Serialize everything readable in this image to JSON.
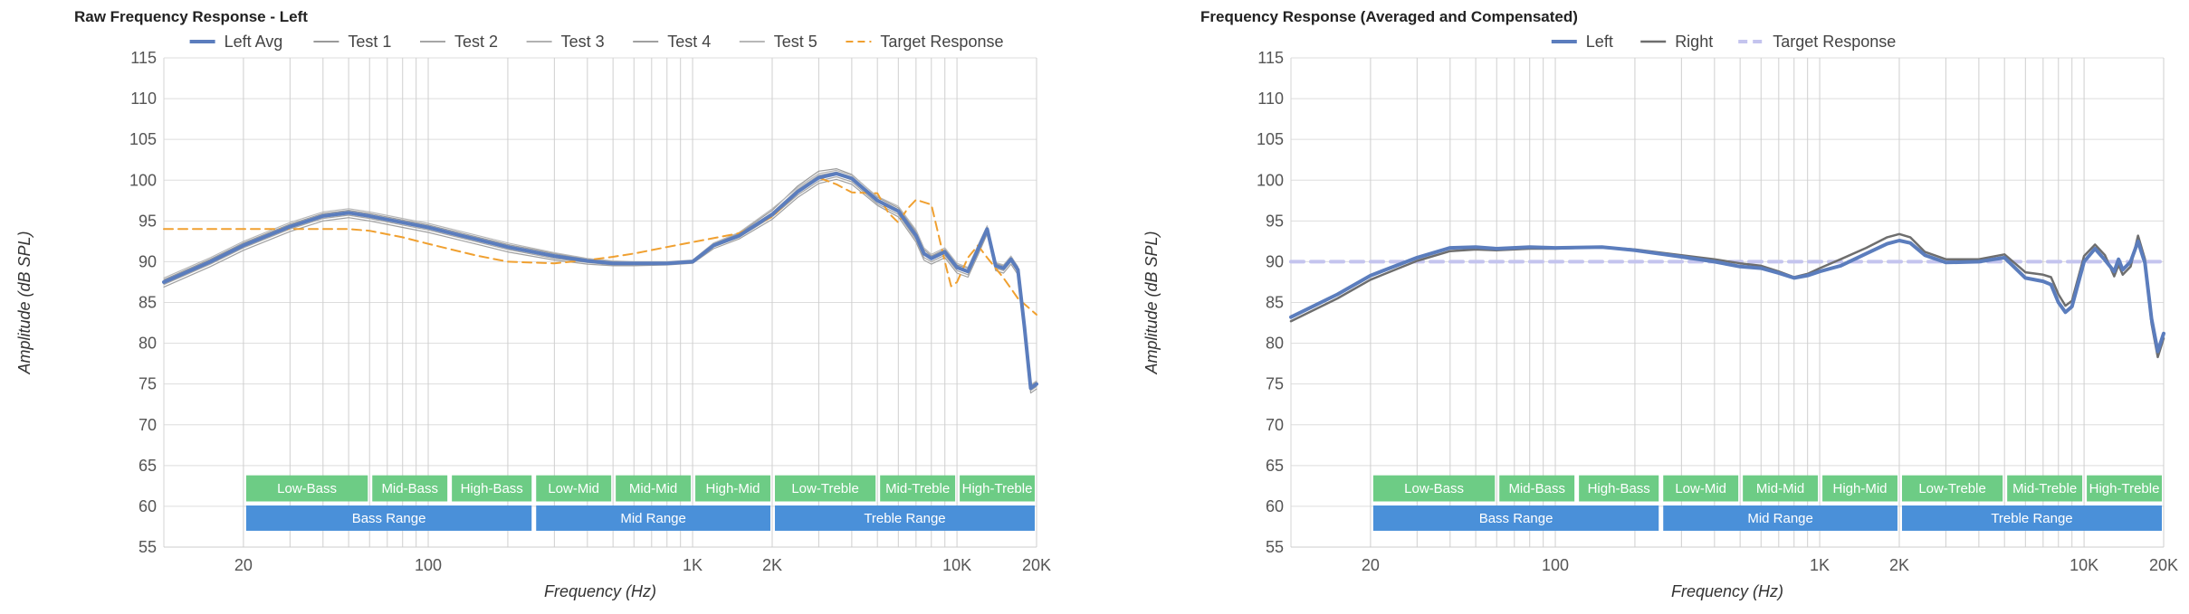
{
  "chart_data": [
    {
      "type": "line",
      "title": "Raw Frequency Response - Left",
      "xlabel": "Frequency (Hz)",
      "ylabel": "Amplitude (dB SPL)",
      "x_scale": "log",
      "xlim": [
        10,
        20000
      ],
      "ylim": [
        55,
        115
      ],
      "yticks": [
        55,
        60,
        65,
        70,
        75,
        80,
        85,
        90,
        95,
        100,
        105,
        110,
        115
      ],
      "xtick_labels": [
        {
          "value": 20,
          "label": "20"
        },
        {
          "value": 100,
          "label": "100"
        },
        {
          "value": 1000,
          "label": "1K"
        },
        {
          "value": 2000,
          "label": "2K"
        },
        {
          "value": 10000,
          "label": "10K"
        },
        {
          "value": 20000,
          "label": "20K"
        }
      ],
      "grid": true,
      "legend_position": "top-center",
      "series": [
        {
          "name": "Left Avg",
          "color": "#5b7dbd",
          "style": "solid-thick",
          "x": [
            10,
            15,
            20,
            30,
            40,
            50,
            60,
            80,
            100,
            150,
            200,
            300,
            400,
            500,
            600,
            800,
            1000,
            1200,
            1500,
            2000,
            2500,
            3000,
            3500,
            4000,
            5000,
            6000,
            7000,
            7500,
            8000,
            9000,
            10000,
            11000,
            12000,
            13000,
            14000,
            15000,
            16000,
            17000,
            18000,
            19000,
            20000
          ],
          "y": [
            87.5,
            90.0,
            92.0,
            94.3,
            95.6,
            96.0,
            95.6,
            94.8,
            94.2,
            92.8,
            91.8,
            90.7,
            90.1,
            89.8,
            89.8,
            89.8,
            90.0,
            92.0,
            93.2,
            95.8,
            98.6,
            100.3,
            100.8,
            100.2,
            97.5,
            96.2,
            93.2,
            91.0,
            90.4,
            91.2,
            89.3,
            88.8,
            91.5,
            94.0,
            89.5,
            89.2,
            90.3,
            89.0,
            82.0,
            74.5,
            75.0
          ]
        },
        {
          "name": "Test 1",
          "color": "#9a9a9a",
          "style": "thin",
          "x": [
            10,
            15,
            20,
            30,
            40,
            50,
            60,
            80,
            100,
            150,
            200,
            300,
            400,
            500,
            600,
            800,
            1000,
            1200,
            1500,
            2000,
            2500,
            3000,
            3500,
            4000,
            5000,
            6000,
            7000,
            7500,
            8000,
            9000,
            10000,
            11000,
            12000,
            13000,
            14000,
            15000,
            16000,
            17000,
            18000,
            19000,
            20000
          ],
          "y": [
            87.8,
            90.3,
            92.3,
            94.6,
            95.9,
            96.3,
            95.9,
            95.1,
            94.5,
            93.1,
            92.1,
            91.0,
            90.3,
            90.0,
            89.9,
            89.9,
            90.1,
            92.2,
            93.5,
            96.3,
            99.3,
            101.1,
            101.4,
            100.7,
            97.9,
            96.6,
            93.7,
            91.5,
            90.7,
            91.5,
            89.6,
            89.2,
            91.9,
            94.3,
            89.8,
            89.5,
            90.6,
            89.3,
            82.3,
            74.8,
            75.3
          ]
        },
        {
          "name": "Test 2",
          "color": "#a6a6a6",
          "style": "thin",
          "x": [
            10,
            15,
            20,
            30,
            40,
            50,
            60,
            80,
            100,
            150,
            200,
            300,
            400,
            500,
            600,
            800,
            1000,
            1200,
            1500,
            2000,
            2500,
            3000,
            3500,
            4000,
            5000,
            6000,
            7000,
            7500,
            8000,
            9000,
            10000,
            11000,
            12000,
            13000,
            14000,
            15000,
            16000,
            17000,
            18000,
            19000,
            20000
          ],
          "y": [
            87.2,
            89.7,
            91.7,
            94.0,
            95.3,
            95.7,
            95.3,
            94.5,
            93.9,
            92.5,
            91.5,
            90.4,
            89.9,
            89.6,
            89.6,
            89.7,
            89.9,
            91.8,
            93.0,
            95.5,
            98.2,
            99.9,
            100.4,
            99.8,
            97.1,
            95.8,
            92.7,
            90.5,
            90.0,
            90.8,
            88.9,
            88.4,
            91.1,
            93.7,
            89.2,
            88.9,
            90.0,
            88.7,
            81.7,
            74.2,
            74.7
          ]
        },
        {
          "name": "Test 3",
          "color": "#b2b2b2",
          "style": "thin",
          "x": [
            10,
            15,
            20,
            30,
            40,
            50,
            60,
            80,
            100,
            150,
            200,
            300,
            400,
            500,
            600,
            800,
            1000,
            1200,
            1500,
            2000,
            2500,
            3000,
            3500,
            4000,
            5000,
            6000,
            7000,
            7500,
            8000,
            9000,
            10000,
            11000,
            12000,
            13000,
            14000,
            15000,
            16000,
            17000,
            18000,
            19000,
            20000
          ],
          "y": [
            87.6,
            90.1,
            92.1,
            94.4,
            95.7,
            96.1,
            95.7,
            94.9,
            94.3,
            92.9,
            91.9,
            90.8,
            90.2,
            89.9,
            89.9,
            89.9,
            90.1,
            92.1,
            93.4,
            96.0,
            98.9,
            100.6,
            101.0,
            100.4,
            97.7,
            96.4,
            93.4,
            91.2,
            90.6,
            91.4,
            89.5,
            88.9,
            91.6,
            94.1,
            89.6,
            89.3,
            90.4,
            89.1,
            82.1,
            74.6,
            75.1
          ]
        },
        {
          "name": "Test 4",
          "color": "#a0a0a0",
          "style": "thin",
          "x": [
            10,
            15,
            20,
            30,
            40,
            50,
            60,
            80,
            100,
            150,
            200,
            300,
            400,
            500,
            600,
            800,
            1000,
            1200,
            1500,
            2000,
            2500,
            3000,
            3500,
            4000,
            5000,
            6000,
            7000,
            7500,
            8000,
            9000,
            10000,
            11000,
            12000,
            13000,
            14000,
            15000,
            16000,
            17000,
            18000,
            19000,
            20000
          ],
          "y": [
            86.9,
            89.4,
            91.4,
            93.7,
            95.0,
            95.4,
            95.0,
            94.2,
            93.6,
            92.2,
            91.2,
            90.2,
            89.7,
            89.5,
            89.5,
            89.6,
            89.8,
            91.6,
            92.8,
            95.2,
            97.9,
            99.6,
            100.1,
            99.5,
            96.9,
            95.5,
            92.4,
            90.2,
            89.7,
            90.5,
            88.6,
            88.1,
            90.8,
            93.4,
            88.9,
            88.6,
            89.7,
            88.4,
            81.4,
            73.9,
            74.4
          ]
        },
        {
          "name": "Test 5",
          "color": "#b8b8b8",
          "style": "thin",
          "x": [
            10,
            15,
            20,
            30,
            40,
            50,
            60,
            80,
            100,
            150,
            200,
            300,
            400,
            500,
            600,
            800,
            1000,
            1200,
            1500,
            2000,
            2500,
            3000,
            3500,
            4000,
            5000,
            6000,
            7000,
            7500,
            8000,
            9000,
            10000,
            11000,
            12000,
            13000,
            14000,
            15000,
            16000,
            17000,
            18000,
            19000,
            20000
          ],
          "y": [
            88.0,
            90.5,
            92.5,
            94.8,
            96.1,
            96.5,
            96.1,
            95.3,
            94.7,
            93.3,
            92.3,
            91.1,
            90.4,
            90.1,
            90.0,
            90.0,
            90.2,
            92.3,
            93.6,
            96.5,
            99.1,
            100.8,
            101.2,
            100.6,
            98.0,
            96.8,
            93.9,
            91.7,
            90.9,
            91.7,
            89.8,
            89.3,
            92.0,
            94.4,
            89.9,
            89.6,
            90.7,
            89.4,
            82.4,
            74.9,
            75.4
          ]
        },
        {
          "name": "Target Response",
          "color": "#f0a030",
          "style": "dashed",
          "x": [
            10,
            20,
            30,
            40,
            50,
            60,
            80,
            100,
            150,
            200,
            300,
            400,
            500,
            600,
            800,
            1000,
            1500,
            2000,
            2500,
            3000,
            3500,
            4000,
            5000,
            5500,
            6000,
            6500,
            7000,
            8000,
            9000,
            9500,
            10000,
            11000,
            12000,
            13000,
            15000,
            17000,
            20000
          ],
          "y": [
            94.0,
            94.0,
            94.0,
            94.0,
            94.0,
            93.8,
            93.0,
            92.2,
            90.8,
            90.0,
            89.8,
            90.2,
            90.6,
            91.0,
            91.8,
            92.4,
            93.5,
            95.5,
            98.5,
            100.3,
            99.5,
            98.5,
            98.4,
            96.0,
            94.8,
            96.5,
            97.6,
            97.0,
            90.0,
            87.0,
            87.5,
            90.5,
            92.0,
            90.5,
            88.0,
            85.5,
            83.5
          ]
        }
      ],
      "bands_row1": [
        "Low-Bass",
        "Mid-Bass",
        "High-Bass",
        "Low-Mid",
        "Mid-Mid",
        "High-Mid",
        "Low-Treble",
        "Mid-Treble",
        "High-Treble"
      ],
      "bands_row2": [
        "Bass Range",
        "Mid Range",
        "Treble Range"
      ]
    },
    {
      "type": "line",
      "title": "Frequency Response (Averaged and Compensated)",
      "xlabel": "Frequency (Hz)",
      "ylabel": "Amplitude (dB SPL)",
      "x_scale": "log",
      "xlim": [
        10,
        20000
      ],
      "ylim": [
        55,
        115
      ],
      "yticks": [
        55,
        60,
        65,
        70,
        75,
        80,
        85,
        90,
        95,
        100,
        105,
        110,
        115
      ],
      "xtick_labels": [
        {
          "value": 20,
          "label": "20"
        },
        {
          "value": 100,
          "label": "100"
        },
        {
          "value": 1000,
          "label": "1K"
        },
        {
          "value": 2000,
          "label": "2K"
        },
        {
          "value": 10000,
          "label": "10K"
        },
        {
          "value": 20000,
          "label": "20K"
        }
      ],
      "grid": true,
      "legend_position": "top-center",
      "series": [
        {
          "name": "Left",
          "color": "#5b7dbd",
          "style": "solid-thick",
          "x": [
            10,
            15,
            20,
            30,
            40,
            50,
            60,
            80,
            100,
            150,
            200,
            300,
            400,
            500,
            600,
            700,
            800,
            900,
            1000,
            1200,
            1500,
            1800,
            2000,
            2200,
            2500,
            3000,
            4000,
            5000,
            6000,
            7000,
            7500,
            8000,
            8500,
            9000,
            10000,
            11000,
            12000,
            13000,
            13500,
            14000,
            15000,
            16000,
            17000,
            18000,
            19000,
            20000
          ],
          "y": [
            83.2,
            86.0,
            88.3,
            90.5,
            91.7,
            91.8,
            91.6,
            91.8,
            91.7,
            91.8,
            91.4,
            90.6,
            90.0,
            89.4,
            89.2,
            88.6,
            88.0,
            88.3,
            88.8,
            89.5,
            91.0,
            92.2,
            92.6,
            92.3,
            90.8,
            89.9,
            90.0,
            90.5,
            88.0,
            87.6,
            87.2,
            85.0,
            83.8,
            84.5,
            90.0,
            91.6,
            90.2,
            88.8,
            90.3,
            89.0,
            90.0,
            92.5,
            89.8,
            83.0,
            79.0,
            81.2
          ]
        },
        {
          "name": "Right",
          "color": "#6e6e6e",
          "style": "solid",
          "x": [
            10,
            15,
            20,
            30,
            40,
            50,
            60,
            80,
            100,
            150,
            200,
            300,
            400,
            500,
            600,
            700,
            800,
            900,
            1000,
            1200,
            1500,
            1800,
            2000,
            2200,
            2500,
            3000,
            4000,
            5000,
            6000,
            7000,
            7500,
            8000,
            8500,
            9000,
            10000,
            11000,
            12000,
            13000,
            13500,
            14000,
            15000,
            16000,
            17000,
            18000,
            19000,
            20000
          ],
          "y": [
            82.7,
            85.5,
            87.8,
            90.1,
            91.3,
            91.5,
            91.4,
            91.6,
            91.6,
            91.8,
            91.5,
            90.8,
            90.3,
            89.8,
            89.5,
            88.8,
            88.1,
            88.5,
            89.2,
            90.3,
            91.7,
            93.0,
            93.4,
            93.0,
            91.2,
            90.3,
            90.3,
            90.9,
            88.7,
            88.4,
            88.1,
            86.0,
            84.6,
            85.2,
            90.7,
            92.1,
            90.8,
            88.2,
            89.6,
            88.4,
            89.4,
            93.2,
            90.3,
            82.4,
            78.3,
            80.6
          ]
        },
        {
          "name": "Target Response",
          "color": "#c4c4ee",
          "style": "dashed-thick",
          "x": [
            10,
            20000
          ],
          "y": [
            90.0,
            90.0
          ]
        }
      ],
      "bands_row1": [
        "Low-Bass",
        "Mid-Bass",
        "High-Bass",
        "Low-Mid",
        "Mid-Mid",
        "High-Mid",
        "Low-Treble",
        "Mid-Treble",
        "High-Treble"
      ],
      "bands_row2": [
        "Bass Range",
        "Mid Range",
        "Treble Range"
      ]
    }
  ],
  "colors": {
    "band_top": "#6dcc85",
    "band_bottom": "#4a90d9",
    "grid": "#dddddd"
  }
}
